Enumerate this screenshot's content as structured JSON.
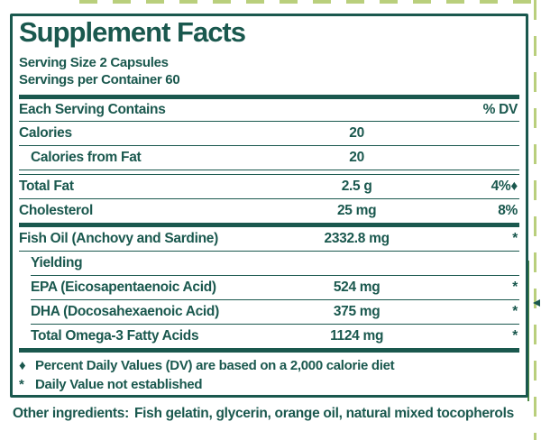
{
  "colors": {
    "teal": "#1a584e",
    "light_green_dash": "#b9cf7c",
    "mid_green_line": "#4f8a46",
    "background": "#ffffff"
  },
  "panel": {
    "title": "Supplement Facts",
    "serving_size": "Serving Size 2 Capsules",
    "servings_per_container": "Servings per Container 60",
    "header_left": "Each Serving Contains",
    "header_right": "% DV",
    "rows": [
      {
        "name": "Calories",
        "amount": "20",
        "dv": "",
        "indent": false,
        "sep": "thin"
      },
      {
        "name": "Calories from Fat",
        "amount": "20",
        "dv": "",
        "indent": true,
        "sep": "double"
      },
      {
        "name": "Total Fat",
        "amount": "2.5 g",
        "dv": "4%♦",
        "indent": false,
        "sep": "thin"
      },
      {
        "name": "Cholesterol",
        "amount": "25 mg",
        "dv": "8%",
        "indent": false,
        "sep": "thick"
      },
      {
        "name": "Fish Oil (Anchovy and Sardine)",
        "amount": "2332.8 mg",
        "dv": "*",
        "indent": false,
        "sep": "thin"
      },
      {
        "name": "Yielding",
        "amount": "",
        "dv": "",
        "indent": true,
        "sep": "thin-indent"
      },
      {
        "name": "EPA (Eicosapentaenoic Acid)",
        "amount": "524 mg",
        "dv": "*",
        "indent": true,
        "sep": "thin-indent"
      },
      {
        "name": "DHA (Docosahexaenoic Acid)",
        "amount": "375 mg",
        "dv": "*",
        "indent": true,
        "sep": "thin-indent"
      },
      {
        "name": "Total Omega-3 Fatty Acids",
        "amount": "1124 mg",
        "dv": "*",
        "indent": true,
        "sep": "thick"
      }
    ],
    "footnotes": [
      {
        "symbol": "♦",
        "text": "Percent Daily Values (DV) are based on a 2,000 calorie diet"
      },
      {
        "symbol": "*",
        "text": "Daily Value not established"
      }
    ],
    "other_ingredients_label": "Other ingredients:",
    "other_ingredients_value": "Fish gelatin, glycerin, orange oil, natural mixed tocopherols"
  }
}
